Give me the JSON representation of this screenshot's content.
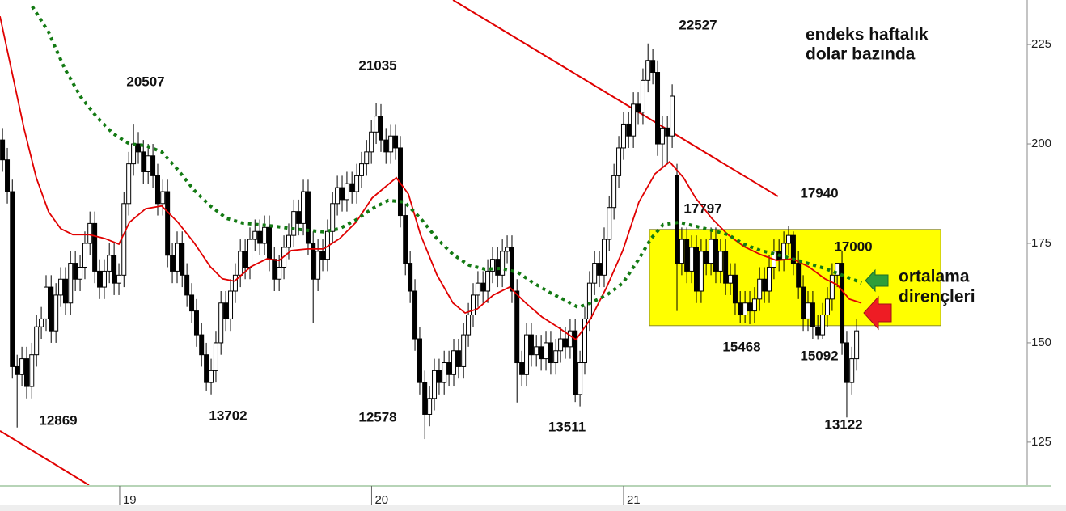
{
  "chart_data": {
    "type": "candlestick",
    "title": [
      "endeks haftalık",
      "dolar bazında"
    ],
    "arrow_label": [
      "ortalama",
      "dirençleri"
    ],
    "xlim": [
      18.525,
      22.602
    ],
    "xticks": [
      19,
      20,
      21
    ],
    "ylim": [
      11420,
      23620
    ],
    "yticks": [
      12500,
      15000,
      17500,
      20000,
      22500
    ],
    "up_color": "#ffffff",
    "down_color": "#000000",
    "x": [
      18.535,
      18.554,
      18.574,
      18.593,
      18.612,
      18.631,
      18.651,
      18.67,
      18.689,
      18.708,
      18.728,
      18.747,
      18.766,
      18.785,
      18.805,
      18.824,
      18.843,
      18.862,
      18.882,
      18.901,
      18.92,
      18.939,
      18.959,
      18.978,
      18.997,
      19.017,
      19.036,
      19.055,
      19.074,
      19.094,
      19.113,
      19.132,
      19.151,
      19.171,
      19.19,
      19.209,
      19.228,
      19.248,
      19.267,
      19.286,
      19.305,
      19.325,
      19.344,
      19.363,
      19.382,
      19.402,
      19.421,
      19.44,
      19.459,
      19.479,
      19.498,
      19.517,
      19.537,
      19.556,
      19.575,
      19.594,
      19.614,
      19.633,
      19.652,
      19.671,
      19.691,
      19.71,
      19.729,
      19.748,
      19.768,
      19.787,
      19.806,
      19.825,
      19.845,
      19.864,
      19.883,
      19.902,
      19.922,
      19.941,
      19.96,
      19.98,
      19.999,
      20.018,
      20.037,
      20.057,
      20.076,
      20.095,
      20.114,
      20.134,
      20.153,
      20.172,
      20.191,
      20.211,
      20.23,
      20.249,
      20.268,
      20.288,
      20.307,
      20.326,
      20.345,
      20.365,
      20.384,
      20.403,
      20.422,
      20.442,
      20.461,
      20.48,
      20.5,
      20.519,
      20.538,
      20.557,
      20.577,
      20.596,
      20.615,
      20.634,
      20.654,
      20.673,
      20.692,
      20.711,
      20.731,
      20.75,
      20.769,
      20.788,
      20.808,
      20.827,
      20.846,
      20.865,
      20.885,
      20.904,
      20.923,
      20.943,
      20.962,
      20.981,
      21.0,
      21.02,
      21.039,
      21.058,
      21.077,
      21.097,
      21.116,
      21.135,
      21.154,
      21.174,
      21.193,
      21.212,
      21.231,
      21.251,
      21.27,
      21.289,
      21.308,
      21.328,
      21.347,
      21.366,
      21.385,
      21.405,
      21.424,
      21.443,
      21.463,
      21.482,
      21.501,
      21.52,
      21.54,
      21.559,
      21.578,
      21.597,
      21.617,
      21.636,
      21.655,
      21.674,
      21.694,
      21.713,
      21.732,
      21.751,
      21.771,
      21.79,
      21.809,
      21.828,
      21.848,
      21.867,
      21.886,
      21.906,
      21.925
    ],
    "open": [
      20100,
      19600,
      18800,
      14400,
      14200,
      14600,
      13900,
      14700,
      15400,
      15600,
      16400,
      15300,
      16200,
      16600,
      16000,
      17000,
      16600,
      16900,
      17500,
      18000,
      16800,
      16400,
      16800,
      17200,
      16500,
      16700,
      18500,
      19500,
      20000,
      19800,
      19300,
      19700,
      19200,
      18500,
      18800,
      17200,
      16800,
      17500,
      16700,
      16200,
      15800,
      15200,
      14700,
      14000,
      14300,
      15000,
      16000,
      15600,
      16300,
      16700,
      17300,
      16900,
      17600,
      17800,
      17500,
      17900,
      17100,
      16600,
      16900,
      17400,
      17700,
      18300,
      18000,
      18800,
      17500,
      16600,
      17300,
      17100,
      17800,
      18500,
      18900,
      18600,
      19000,
      18800,
      19200,
      19500,
      19800,
      20300,
      20700,
      20100,
      19800,
      20200,
      19900,
      18200,
      17000,
      16300,
      15100,
      14000,
      13200,
      13600,
      14300,
      14000,
      14500,
      14200,
      14800,
      14400,
      15200,
      15700,
      16200,
      16500,
      16300,
      16800,
      17100,
      16700,
      17300,
      17400,
      16300,
      14500,
      14200,
      15200,
      14700,
      14900,
      14600,
      15000,
      14500,
      14800,
      15100,
      14900,
      15300,
      13700,
      14500,
      15600,
      16500,
      17000,
      16700,
      17600,
      18400,
      19200,
      19900,
      20500,
      20200,
      21000,
      20800,
      21600,
      22100,
      21800,
      20000,
      20400,
      20200,
      19200,
      17000,
      17600,
      16800,
      17400,
      16300,
      17300,
      17000,
      17600,
      16800,
      17300,
      16500,
      16700,
      16000,
      15700,
      16000,
      15800,
      16100,
      16600,
      16300,
      16900,
      17300,
      17100,
      17500,
      17700,
      17000,
      16400,
      15600,
      16000,
      15400,
      15200,
      15700,
      16100,
      16700,
      17000,
      15000,
      14000,
      14600
    ],
    "high": [
      20400,
      19900,
      19100,
      14700,
      14900,
      14900,
      15000,
      15700,
      15900,
      16700,
      16700,
      16500,
      16900,
      16900,
      17300,
      17300,
      17200,
      17800,
      18300,
      18300,
      17100,
      17100,
      17500,
      17500,
      17000,
      18800,
      19800,
      20507,
      20300,
      20100,
      20000,
      20000,
      19500,
      19100,
      19100,
      17500,
      17800,
      17800,
      17000,
      16500,
      16100,
      15500,
      15000,
      14600,
      15300,
      16300,
      16300,
      16600,
      17000,
      17600,
      17600,
      17900,
      18100,
      18100,
      18200,
      18200,
      17400,
      17200,
      17700,
      18000,
      18600,
      18600,
      19100,
      19100,
      17800,
      17600,
      17600,
      18100,
      18800,
      19200,
      19200,
      19300,
      19300,
      19500,
      19800,
      20100,
      20600,
      21035,
      21000,
      20400,
      20500,
      20500,
      20200,
      18500,
      17300,
      16600,
      15400,
      14300,
      13900,
      14600,
      14600,
      14800,
      14800,
      15100,
      15100,
      15500,
      16000,
      16500,
      16800,
      16800,
      17100,
      17400,
      17400,
      17600,
      17700,
      17700,
      16600,
      14800,
      15500,
      15500,
      15200,
      15200,
      15300,
      15300,
      15100,
      15400,
      15400,
      15600,
      15600,
      14800,
      15900,
      16800,
      17300,
      17300,
      17900,
      18700,
      19500,
      20200,
      20800,
      20800,
      21300,
      21300,
      21900,
      22527,
      22400,
      22100,
      20700,
      20700,
      21500,
      19500,
      17900,
      17900,
      17700,
      17700,
      17600,
      17600,
      17900,
      17900,
      17600,
      17600,
      17000,
      17000,
      16300,
      16300,
      16300,
      16400,
      16900,
      16900,
      17200,
      17600,
      17600,
      17800,
      17940,
      17800,
      17300,
      16700,
      16300,
      16300,
      15700,
      16000,
      16400,
      17000,
      17000,
      17300,
      15300,
      14900,
      15600
    ],
    "low": [
      19300,
      18500,
      14100,
      12869,
      13900,
      13600,
      13600,
      14400,
      15100,
      15300,
      15000,
      15000,
      15900,
      15700,
      15700,
      16300,
      16300,
      16600,
      17200,
      16500,
      16100,
      16100,
      16500,
      16200,
      16200,
      16400,
      18200,
      19200,
      19500,
      19000,
      19000,
      18900,
      18200,
      18200,
      16900,
      16500,
      16500,
      16400,
      15900,
      15500,
      14900,
      14400,
      13800,
      13702,
      14000,
      14700,
      15300,
      15300,
      16000,
      16400,
      16600,
      16600,
      17300,
      17200,
      17200,
      16800,
      16300,
      16300,
      16600,
      17100,
      17400,
      17700,
      17700,
      17200,
      15500,
      16300,
      16800,
      16800,
      17500,
      18200,
      18300,
      18300,
      18500,
      18500,
      18900,
      19200,
      19500,
      20000,
      19800,
      19500,
      19500,
      19600,
      17900,
      16700,
      16000,
      14800,
      13700,
      12578,
      12900,
      13300,
      13700,
      13700,
      13900,
      13900,
      14100,
      14100,
      14900,
      15400,
      15900,
      16000,
      16000,
      16500,
      16400,
      16400,
      17000,
      16000,
      13500,
      13900,
      13900,
      14400,
      14400,
      14300,
      14300,
      14200,
      14200,
      14500,
      14600,
      14600,
      13511,
      13400,
      14200,
      15300,
      16200,
      16400,
      16400,
      17300,
      18100,
      18900,
      19600,
      19900,
      19900,
      20500,
      20500,
      21300,
      21500,
      19700,
      19400,
      19500,
      19900,
      15800,
      16700,
      16500,
      16500,
      16000,
      16000,
      16700,
      16700,
      16500,
      16500,
      16200,
      16200,
      15700,
      15500,
      15500,
      15468,
      15500,
      15800,
      16000,
      16000,
      16600,
      16800,
      16800,
      17200,
      16700,
      16100,
      15300,
      15300,
      15100,
      15092,
      15100,
      15400,
      15800,
      16400,
      14700,
      13122,
      13700,
      14300
    ],
    "close": [
      19600,
      18800,
      14400,
      14200,
      14600,
      13900,
      14700,
      15400,
      15600,
      16400,
      15300,
      16200,
      16600,
      16000,
      17000,
      16600,
      16900,
      17500,
      18000,
      16800,
      16400,
      16800,
      17200,
      16500,
      16700,
      18500,
      19500,
      20000,
      19800,
      19300,
      19700,
      19200,
      18500,
      18800,
      17200,
      16800,
      17500,
      16700,
      16200,
      15800,
      15200,
      14700,
      14000,
      14300,
      15000,
      16000,
      15600,
      16300,
      16700,
      17300,
      16900,
      17600,
      17800,
      17500,
      17900,
      17100,
      16600,
      16900,
      17400,
      17700,
      18300,
      18000,
      18800,
      17500,
      16600,
      17300,
      17100,
      17800,
      18500,
      18900,
      18600,
      19000,
      18800,
      19200,
      19500,
      19800,
      20300,
      20700,
      20100,
      19800,
      20200,
      19900,
      18200,
      17000,
      16300,
      15100,
      14000,
      13200,
      13600,
      14300,
      14000,
      14500,
      14200,
      14800,
      14400,
      15200,
      15700,
      16200,
      16500,
      16300,
      16800,
      17100,
      16700,
      17300,
      17400,
      16300,
      14500,
      14200,
      15200,
      14700,
      14900,
      14600,
      15000,
      14500,
      14800,
      15100,
      14900,
      15300,
      13700,
      14500,
      15600,
      16500,
      17000,
      16700,
      17600,
      18400,
      19200,
      19900,
      20500,
      20200,
      21000,
      20800,
      21600,
      22100,
      21800,
      20000,
      20400,
      20200,
      21200,
      17000,
      17600,
      16800,
      17400,
      16300,
      17300,
      17000,
      17600,
      16800,
      17300,
      16500,
      16700,
      16000,
      15700,
      16000,
      15800,
      16100,
      16600,
      16300,
      16900,
      17300,
      17100,
      17500,
      17700,
      17000,
      16400,
      15600,
      16000,
      15400,
      15200,
      15700,
      16100,
      16700,
      17000,
      15000,
      14000,
      14600,
      15300
    ],
    "lines": [
      {
        "color": "#e00000",
        "style": "solid",
        "x": [
          18.525,
          18.573,
          18.621,
          18.669,
          18.718,
          18.766,
          18.814,
          18.878,
          18.942,
          18.997,
          19.039,
          19.103,
          19.167,
          19.231,
          19.295,
          19.36,
          19.408,
          19.456,
          19.52,
          19.584,
          19.633,
          19.681,
          19.745,
          19.809,
          19.873,
          19.938,
          20.002,
          20.098,
          20.146,
          20.194,
          20.259,
          20.323,
          20.371,
          20.419,
          20.483,
          20.547,
          20.612,
          20.676,
          20.74,
          20.811,
          20.868,
          20.933,
          20.997,
          21.061,
          21.125,
          21.183,
          21.238,
          21.286,
          21.35,
          21.414,
          21.478,
          21.543,
          21.607,
          21.671,
          21.735,
          21.799,
          21.848,
          21.896,
          21.944
        ],
        "values": [
          23210,
          21790,
          20370,
          19150,
          18290,
          17870,
          17720,
          17720,
          17620,
          17480,
          18030,
          18370,
          18440,
          18030,
          17520,
          16910,
          16610,
          16550,
          16910,
          17110,
          17070,
          17320,
          17360,
          17360,
          17620,
          18030,
          18640,
          19150,
          18740,
          17720,
          16710,
          16000,
          15750,
          15850,
          16200,
          16400,
          16000,
          15650,
          15390,
          15080,
          15590,
          16400,
          17320,
          18540,
          19250,
          19550,
          19150,
          18640,
          18130,
          17720,
          17420,
          17220,
          17070,
          17110,
          16910,
          16610,
          16460,
          16100,
          16000
        ]
      },
      {
        "color": "#137a13",
        "style": "dotted",
        "x": [
          18.653,
          18.718,
          18.782,
          18.846,
          18.91,
          18.974,
          19.039,
          19.103,
          19.167,
          19.231,
          19.295,
          19.36,
          19.424,
          19.488,
          19.552,
          19.616,
          19.681,
          19.745,
          19.809,
          19.873,
          19.938,
          20.002,
          20.066,
          20.13,
          20.194,
          20.259,
          20.323,
          20.387,
          20.451,
          20.515,
          20.58,
          20.644,
          20.708,
          20.772,
          20.82,
          20.868,
          20.933,
          20.997,
          21.061,
          21.109,
          21.157,
          21.222,
          21.286,
          21.35,
          21.414,
          21.478,
          21.543,
          21.607,
          21.671,
          21.735,
          21.799,
          21.864,
          21.928,
          21.944
        ],
        "values": [
          23460,
          22810,
          21890,
          21180,
          20670,
          20260,
          20000,
          19960,
          19800,
          19350,
          18840,
          18440,
          18130,
          18010,
          17970,
          17930,
          17870,
          17830,
          17790,
          17870,
          18090,
          18370,
          18580,
          18540,
          18130,
          17620,
          17220,
          16950,
          16850,
          16870,
          16770,
          16500,
          16260,
          16060,
          15890,
          16000,
          16200,
          16500,
          17110,
          17620,
          17970,
          18030,
          17930,
          17830,
          17720,
          17480,
          17320,
          17220,
          17110,
          16990,
          16870,
          16710,
          16550,
          16500
        ]
      }
    ],
    "trend_lines": [
      {
        "color": "#e00000",
        "x": [
          20.323,
          21.613
        ],
        "y": [
          23620,
          18680
        ]
      },
      {
        "color": "#e00000",
        "x": [
          18.525,
          18.878
        ],
        "y": [
          12785,
          11420
        ]
      }
    ],
    "highlight_box": {
      "color": "#ffff00",
      "x": [
        21.103,
        22.259
      ],
      "y": [
        15430,
        17850
      ]
    },
    "annotations": [
      20507,
      21035,
      22527,
      12869,
      13702,
      12578,
      13511,
      17797,
      17940,
      17000,
      15468,
      15092,
      13122
    ]
  }
}
